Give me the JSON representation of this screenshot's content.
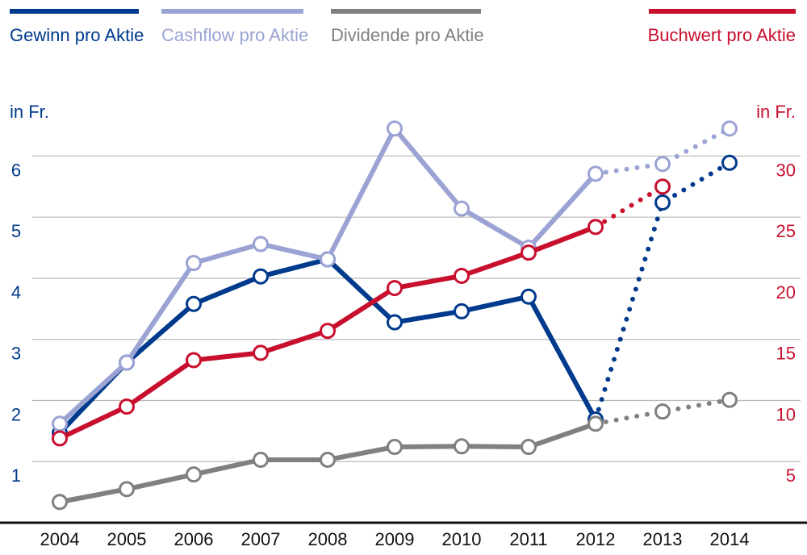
{
  "chart_data": {
    "type": "line",
    "categories": [
      "2004",
      "2005",
      "2006",
      "2007",
      "2008",
      "2009",
      "2010",
      "2011",
      "2012",
      "2013",
      "2014"
    ],
    "y_label": "in Fr.",
    "y2_label": "in Fr.",
    "ylim": [
      0,
      6.6
    ],
    "yticks": [
      1,
      2,
      3,
      4,
      5,
      6
    ],
    "y2lim": [
      0,
      33
    ],
    "y2ticks": [
      5,
      10,
      15,
      20,
      25,
      30
    ],
    "grid": true,
    "forecast_from_index": 8,
    "series": [
      {
        "name": "Gewinn pro Aktie",
        "color": "#003a8c",
        "values": [
          1.47,
          2.62,
          3.58,
          4.03,
          4.31,
          3.28,
          3.46,
          3.7,
          1.69,
          5.24,
          5.89
        ]
      },
      {
        "name": "Cashflow pro Aktie",
        "color": "#9aa3d3",
        "values": [
          1.62,
          2.62,
          4.25,
          4.56,
          4.31,
          6.45,
          5.14,
          4.5,
          5.71,
          5.87,
          6.45
        ]
      },
      {
        "name": "Dividende pro Aktie",
        "color": "#808080",
        "values": [
          0.34,
          0.55,
          0.79,
          1.03,
          1.03,
          1.24,
          1.25,
          1.24,
          1.62,
          1.82,
          2.01
        ]
      },
      {
        "name": "Buchwert pro Aktie",
        "color": "#c8102e",
        "axis": "y2",
        "values": [
          6.9,
          9.5,
          13.3,
          13.9,
          15.7,
          19.2,
          20.2,
          22.1,
          24.2,
          27.5,
          null
        ]
      }
    ]
  }
}
